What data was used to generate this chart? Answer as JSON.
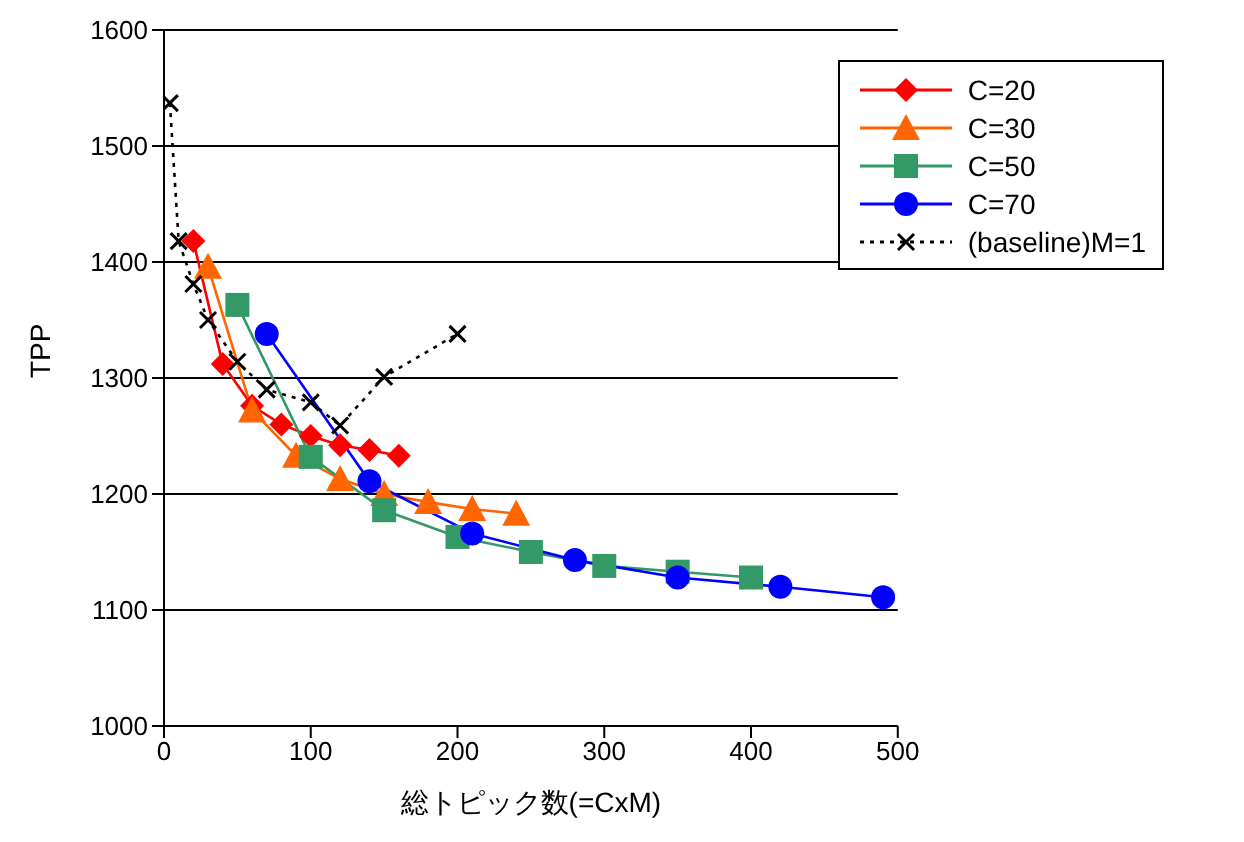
{
  "chart_data": {
    "type": "line",
    "xlabel": "総トピック数(=CxM)",
    "ylabel": "TPP",
    "xlim": [
      0,
      500
    ],
    "xticks": [
      0,
      100,
      200,
      300,
      400,
      500
    ],
    "ylim": [
      1000,
      1600
    ],
    "yticks": [
      1000,
      1100,
      1200,
      1300,
      1400,
      1500,
      1600
    ],
    "grid": "y",
    "legend": "top right",
    "series": [
      {
        "name": "C=20",
        "color": "#ff0000",
        "marker": "diamond",
        "x": [
          20,
          40,
          60,
          80,
          100,
          120,
          140,
          160
        ],
        "values": [
          1418,
          1312,
          1276,
          1260,
          1250,
          1242,
          1238,
          1233
        ]
      },
      {
        "name": "C=30",
        "color": "#ff6600",
        "marker": "triangle",
        "x": [
          30,
          60,
          90,
          120,
          150,
          180,
          210,
          240
        ],
        "values": [
          1396,
          1272,
          1233,
          1213,
          1200,
          1193,
          1187,
          1183
        ]
      },
      {
        "name": "C=50",
        "color": "#339966",
        "marker": "square",
        "x": [
          50,
          100,
          150,
          200,
          250,
          300,
          350,
          400
        ],
        "values": [
          1363,
          1232,
          1186,
          1163,
          1150,
          1138,
          1133,
          1128
        ]
      },
      {
        "name": "C=70",
        "color": "#0000ff",
        "marker": "circle",
        "x": [
          70,
          140,
          210,
          280,
          350,
          420,
          490
        ],
        "values": [
          1338,
          1211,
          1166,
          1143,
          1128,
          1120,
          1111
        ]
      },
      {
        "name": "(baseline)M=1",
        "color": "#000000",
        "marker": "cross",
        "line_style": "dotted",
        "x": [
          4,
          10,
          20,
          30,
          50,
          70,
          100,
          120,
          150,
          200
        ],
        "values": [
          1537,
          1418,
          1381,
          1350,
          1314,
          1290,
          1279,
          1259,
          1301,
          1338
        ]
      }
    ]
  }
}
